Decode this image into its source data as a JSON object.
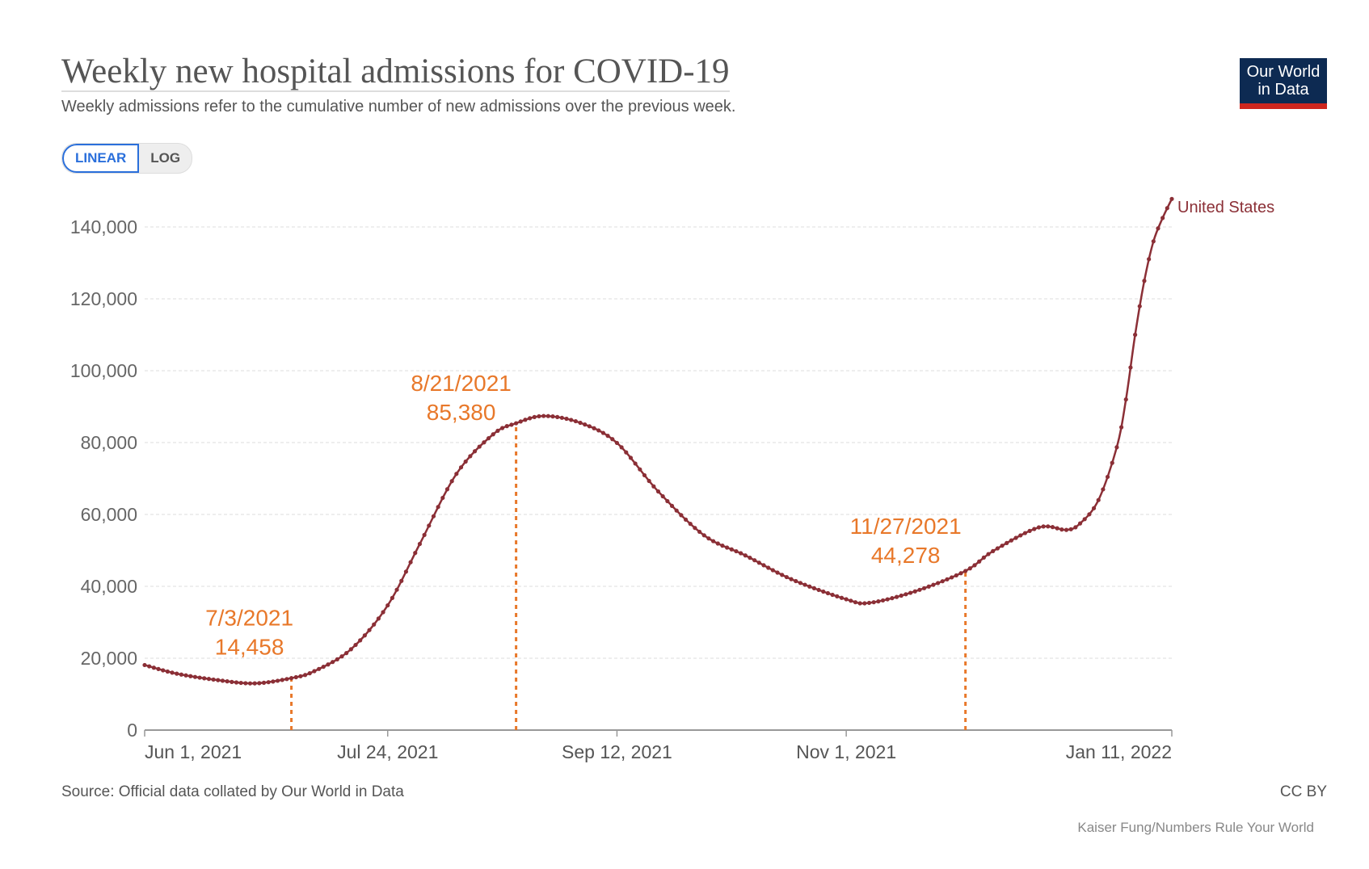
{
  "header": {
    "title": "Weekly new hospital admissions for COVID-19",
    "subtitle": "Weekly admissions refer to the cumulative number of new admissions over the previous week.",
    "scale_toggle": {
      "options": [
        "LINEAR",
        "LOG"
      ],
      "selected": "LINEAR"
    },
    "logo_text": [
      "Our World",
      "in Data"
    ]
  },
  "footer": {
    "source": "Source: Official data collated by Our World in Data",
    "license": "CC BY",
    "credit": "Kaiser Fung/Numbers Rule Your World"
  },
  "colors": {
    "series": "#8b2f36",
    "annotation": "#e8782a",
    "accent": "#2a6fdb",
    "logo_bg": "#0d2a52",
    "logo_bar": "#ce261e"
  },
  "chart_data": {
    "type": "line",
    "title": "Weekly new hospital admissions for COVID-19",
    "xlim": [
      "2021-06-01",
      "2022-01-11"
    ],
    "ylim": [
      0,
      140000
    ],
    "y_ticks": [
      "0",
      "20,000",
      "40,000",
      "60,000",
      "80,000",
      "100,000",
      "120,000",
      "140,000"
    ],
    "x_ticks": [
      {
        "date": "2021-06-01",
        "label": "Jun 1, 2021"
      },
      {
        "date": "2021-07-24",
        "label": "Jul 24, 2021"
      },
      {
        "date": "2021-09-12",
        "label": "Sep 12, 2021"
      },
      {
        "date": "2021-11-01",
        "label": "Nov 1, 2021"
      },
      {
        "date": "2022-01-11",
        "label": "Jan 11, 2022"
      }
    ],
    "grid": "horizontal dashed",
    "series": [
      {
        "name": "United States",
        "points": [
          [
            "2021-06-01",
            18100
          ],
          [
            "2021-06-08",
            15700
          ],
          [
            "2021-06-17",
            13900
          ],
          [
            "2021-06-25",
            13000
          ],
          [
            "2021-07-03",
            14458
          ],
          [
            "2021-07-08",
            16400
          ],
          [
            "2021-07-16",
            22500
          ],
          [
            "2021-07-24",
            34700
          ],
          [
            "2021-07-31",
            51800
          ],
          [
            "2021-08-08",
            71300
          ],
          [
            "2021-08-16",
            82300
          ],
          [
            "2021-08-21",
            85380
          ],
          [
            "2021-08-27",
            87400
          ],
          [
            "2021-09-04",
            85500
          ],
          [
            "2021-09-12",
            79900
          ],
          [
            "2021-09-21",
            66400
          ],
          [
            "2021-10-01",
            54200
          ],
          [
            "2021-10-10",
            48600
          ],
          [
            "2021-10-20",
            42000
          ],
          [
            "2021-11-01",
            36400
          ],
          [
            "2021-11-06",
            35400
          ],
          [
            "2021-11-16",
            38600
          ],
          [
            "2021-11-27",
            44278
          ],
          [
            "2021-12-03",
            49800
          ],
          [
            "2021-12-13",
            56400
          ],
          [
            "2021-12-19",
            55700
          ],
          [
            "2021-12-22",
            57500
          ],
          [
            "2021-12-26",
            64000
          ],
          [
            "2021-12-30",
            78700
          ],
          [
            "2022-01-01",
            92000
          ],
          [
            "2022-01-03",
            110000
          ],
          [
            "2022-01-05",
            125000
          ],
          [
            "2022-01-07",
            136000
          ],
          [
            "2022-01-09",
            142500
          ],
          [
            "2022-01-11",
            147800
          ]
        ]
      }
    ],
    "annotations": [
      {
        "date": "2021-07-03",
        "value": 14458,
        "label_date": "7/3/2021",
        "label_value": "14,458"
      },
      {
        "date": "2021-08-21",
        "value": 85380,
        "label_date": "8/21/2021",
        "label_value": "85,380"
      },
      {
        "date": "2021-11-27",
        "value": 44278,
        "label_date": "11/27/2021",
        "label_value": "44,278"
      }
    ]
  }
}
